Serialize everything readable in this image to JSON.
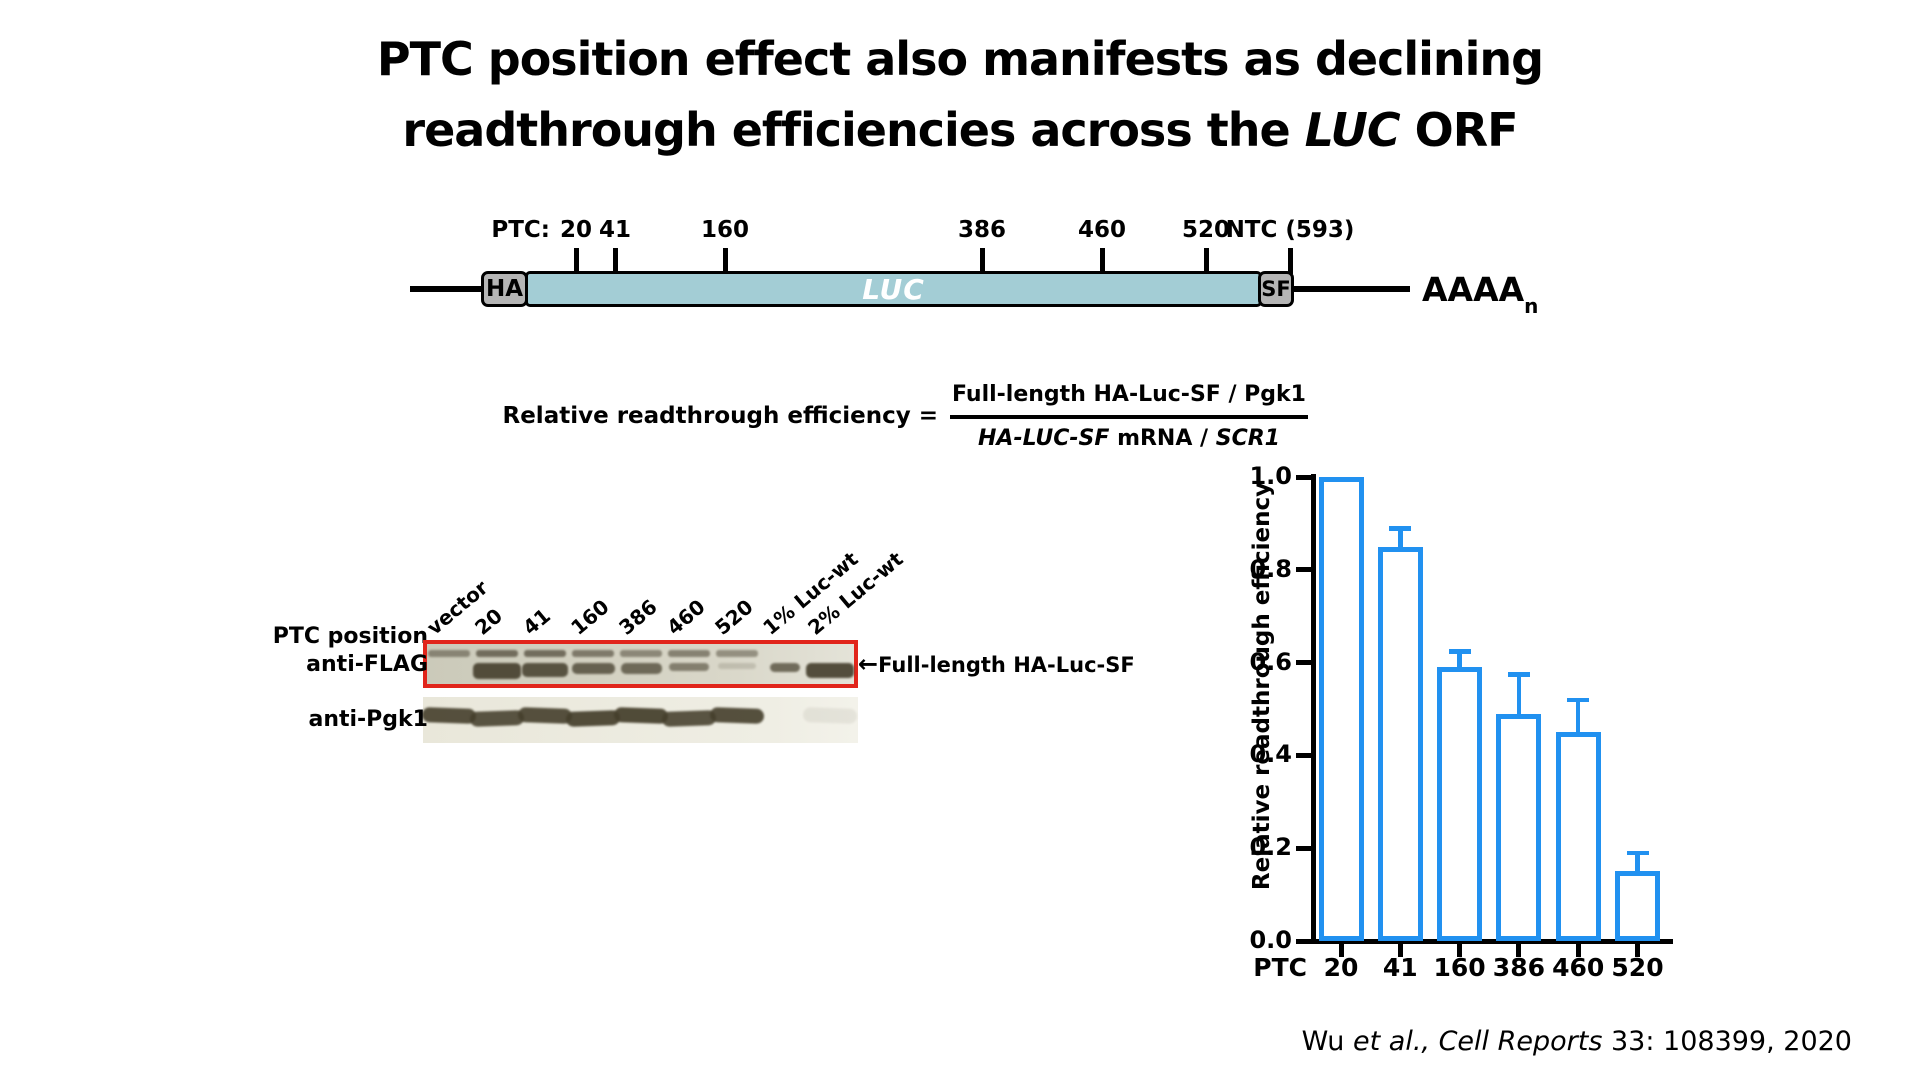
{
  "title": {
    "line1": "PTC position effect also manifests as declining",
    "line2_pre": "readthrough efficiencies across the ",
    "line2_italic": "LUC",
    "line2_post": " ORF"
  },
  "construct": {
    "ptc_prefix": "PTC:",
    "ptc_values": [
      "20",
      "41",
      "160",
      "386",
      "460",
      "520"
    ],
    "ntc_label": "NTC (593)",
    "ha_label": "HA",
    "luc_label": "LUC",
    "sf_label": "SF",
    "polya_label": "AAAA",
    "polya_sub": "n",
    "bar_color": "#a3cdd5",
    "tag_color": "#b5b5b5"
  },
  "formula": {
    "lhs": "Relative readthrough efficiency =",
    "numerator": "Full-length HA-Luc-SF / Pgk1",
    "den_italic1": "HA-LUC-SF",
    "den_mid": " mRNA / ",
    "den_italic2": "SCR1"
  },
  "blot": {
    "row_label": "PTC position",
    "flag_label": "anti-FLAG",
    "pgk1_label": "anti-Pgk1",
    "arrow_glyph": "←",
    "arrow_label": "Full-length HA-Luc-SF",
    "box_color": "#e1251b",
    "lanes": [
      {
        "label": "vector",
        "flag_upper": 0.6,
        "flag_main": 0,
        "flag_w": 44,
        "flag_h": 0,
        "pgk1": 0.9
      },
      {
        "label": "20",
        "flag_upper": 0.8,
        "flag_main": 0.95,
        "flag_w": 48,
        "flag_h": 16,
        "pgk1": 0.88
      },
      {
        "label": "41",
        "flag_upper": 0.8,
        "flag_main": 0.9,
        "flag_w": 46,
        "flag_h": 14,
        "pgk1": 0.9
      },
      {
        "label": "160",
        "flag_upper": 0.7,
        "flag_main": 0.8,
        "flag_w": 43,
        "flag_h": 11,
        "pgk1": 0.92
      },
      {
        "label": "386",
        "flag_upper": 0.6,
        "flag_main": 0.75,
        "flag_w": 41,
        "flag_h": 11,
        "pgk1": 0.93
      },
      {
        "label": "460",
        "flag_upper": 0.65,
        "flag_main": 0.6,
        "flag_w": 40,
        "flag_h": 8,
        "pgk1": 0.88
      },
      {
        "label": "520",
        "flag_upper": 0.55,
        "flag_main": 0.18,
        "flag_w": 38,
        "flag_h": 6,
        "pgk1": 0.9
      },
      {
        "label": "1% Luc-wt",
        "flag_upper": 0,
        "flag_main": 0.75,
        "flag_w": 30,
        "flag_h": 9,
        "pgk1": 0
      },
      {
        "label": "2% Luc-wt",
        "flag_upper": 0,
        "flag_main": 0.95,
        "flag_w": 48,
        "flag_h": 15,
        "pgk1": 0.08
      }
    ]
  },
  "chart_data": {
    "type": "bar",
    "categories": [
      "20",
      "41",
      "160",
      "386",
      "460",
      "520"
    ],
    "values": [
      1.0,
      0.85,
      0.59,
      0.49,
      0.45,
      0.15
    ],
    "errors_plus": [
      0,
      0.04,
      0.035,
      0.085,
      0.07,
      0.04
    ],
    "x_prefix": "PTC",
    "ylabel": "Relative readthrough efficiency",
    "ytick_labels": [
      "0.0",
      "0.2",
      "0.4",
      "0.6",
      "0.8",
      "1.0"
    ],
    "ylim": [
      0,
      1.0
    ],
    "bar_fill": "#ffffff",
    "bar_edge": "#2191f0",
    "grid": false,
    "legend": null
  },
  "citation": {
    "pre": "Wu ",
    "italic": "et al., Cell Reports",
    "post": " 33: 108399, 2020"
  }
}
